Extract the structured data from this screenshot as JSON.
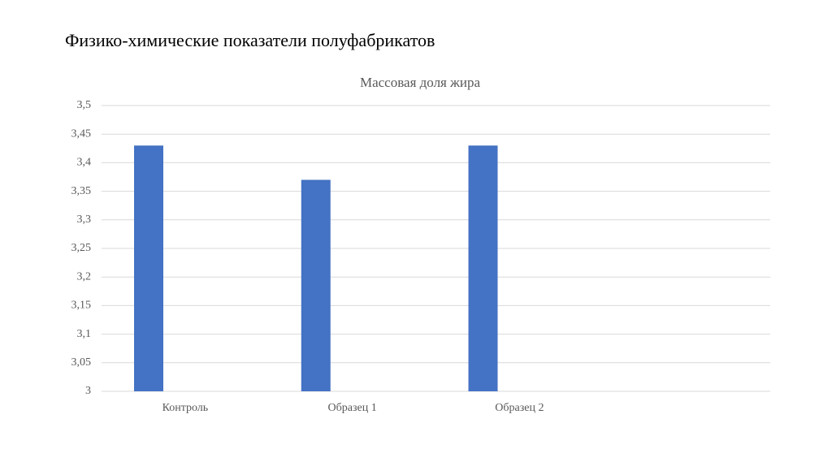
{
  "slide": {
    "title": "Физико-химические показатели полуфабрикатов"
  },
  "chart_data": {
    "type": "bar",
    "title": "Массовая доля жира",
    "categories": [
      "Контроль",
      "Образец 1",
      "Образец 2",
      null
    ],
    "values": [
      3.43,
      3.37,
      3.43,
      null
    ],
    "color": "#4472c4",
    "ylim": [
      3,
      3.5
    ],
    "yticks": [
      3,
      {
        "value": 3.05,
        "label": "3,05"
      },
      {
        "value": 3.1,
        "label": "3,1"
      },
      {
        "value": 3.15,
        "label": "3,15"
      },
      {
        "value": 3.2,
        "label": "3,2"
      },
      {
        "value": 3.25,
        "label": "3,25"
      },
      {
        "value": 3.3,
        "label": "3,3"
      },
      {
        "value": 3.35,
        "label": "3,35"
      },
      {
        "value": 3.4,
        "label": "3,4"
      },
      {
        "value": 3.45,
        "label": "3,45"
      },
      {
        "value": 3.5,
        "label": "3,5"
      }
    ],
    "grid": true
  }
}
